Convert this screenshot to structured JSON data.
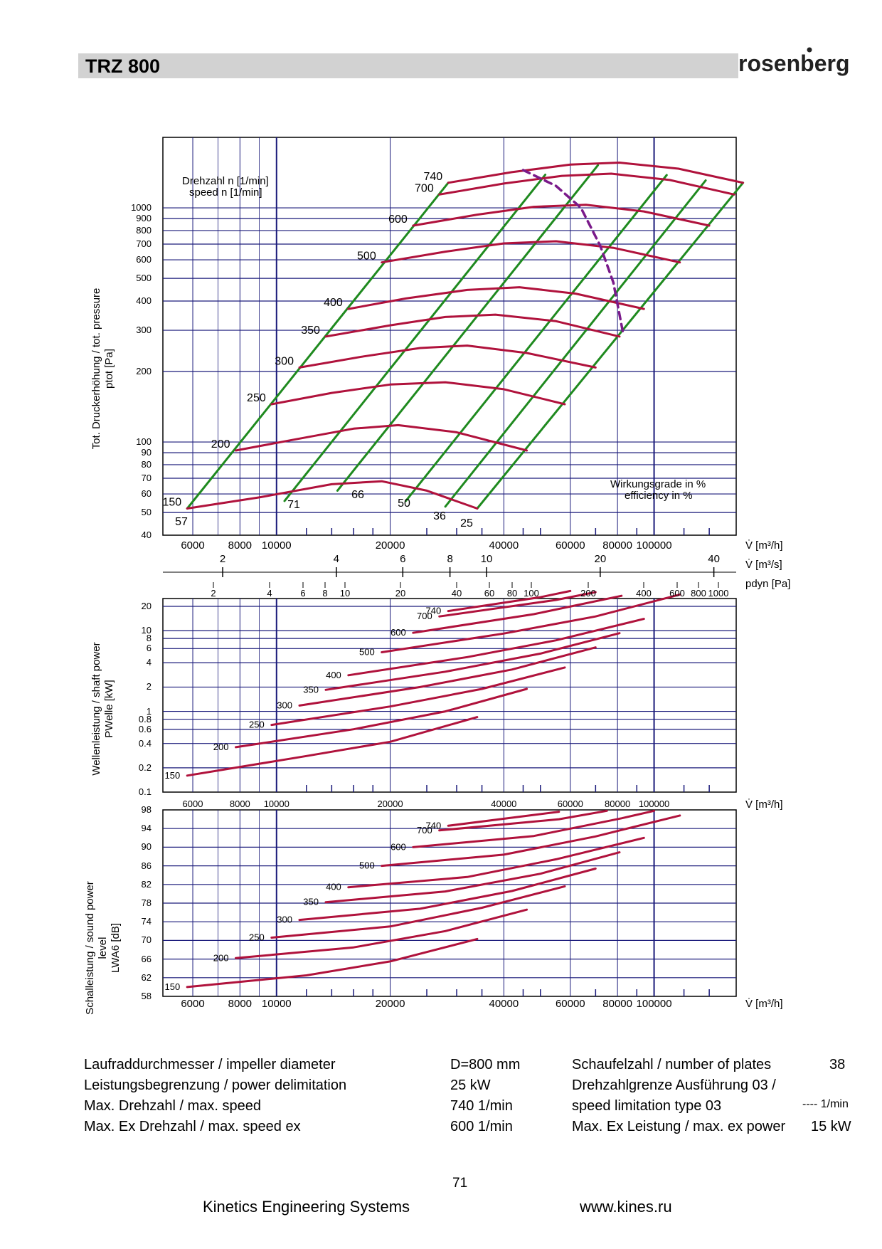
{
  "header": {
    "title": "TRZ 800",
    "logo_text": "rosenberg"
  },
  "pressure_chart": {
    "speed_label_de": "Drehzahl n [1/min]",
    "speed_label_en": "speed n [1/min]",
    "efficiency_label_de": "Wirkungsgrade in %",
    "efficiency_label_en": "efficiency in %",
    "y_title_1": "Tot. Druckerhöhung / tot. pressure",
    "y_title_2": "ptot [Pa]",
    "y_ticks": [
      "1000",
      "900",
      "800",
      "700",
      "600",
      "500",
      "400",
      "300",
      "200",
      "100",
      "90",
      "80",
      "70",
      "60",
      "50",
      "40"
    ],
    "x_ticks": [
      "6000",
      "8000",
      "10000",
      "20000",
      "40000",
      "60000",
      "80000",
      "100000"
    ],
    "x_unit": "V̇ [m³/h]",
    "x2_ticks": [
      "2",
      "4",
      "6",
      "8",
      "10",
      "20",
      "40"
    ],
    "x2_unit": "V̇ [m³/s]",
    "x3_ticks": [
      "2",
      "4",
      "6",
      "8",
      "10",
      "20",
      "40",
      "60",
      "80",
      "100",
      "200",
      "400",
      "600",
      "800",
      "1000"
    ],
    "x3_unit": "pdyn [Pa]"
  },
  "power_chart": {
    "y_title_1": "Wellenleistung / shaft power",
    "y_title_2": "PWelle [kW]",
    "y_ticks": [
      "20",
      "10",
      "8",
      "6",
      "4",
      "2",
      "1",
      "0.8",
      "0.6",
      "0.4",
      "0.2",
      "0.1"
    ],
    "x_ticks": [
      "6000",
      "8000",
      "10000",
      "20000",
      "40000",
      "60000",
      "80000",
      "100000"
    ],
    "x_unit": "V̇ [m³/h]"
  },
  "sound_chart": {
    "y_title_1": "Schalleistung / sound power",
    "y_title_1b": "level",
    "y_title_2": "LWA6 [dB]",
    "y_ticks": [
      "98",
      "94",
      "90",
      "86",
      "82",
      "78",
      "74",
      "70",
      "66",
      "62",
      "58"
    ],
    "x_ticks": [
      "6000",
      "8000",
      "10000",
      "20000",
      "40000",
      "60000",
      "80000",
      "100000"
    ],
    "x_unit": "V̇ [m³/h]"
  },
  "chart_data": [
    {
      "type": "line",
      "title": "",
      "xlabel": "V̇ [m³/h]",
      "ylabel": "Tot. Druckerhöhung / tot. pressure ptot [Pa]",
      "xscale": "log",
      "yscale": "log",
      "xlim": [
        5000,
        165000
      ],
      "ylim": [
        40,
        2000
      ],
      "series": [
        {
          "name": "150",
          "points": [
            [
              5800,
              52
            ],
            [
              9000,
              58
            ],
            [
              14000,
              66
            ],
            [
              19000,
              68
            ],
            [
              25000,
              62
            ],
            [
              34000,
              52
            ]
          ]
        },
        {
          "name": "200",
          "points": [
            [
              7800,
              92
            ],
            [
              11000,
              102
            ],
            [
              16000,
              114
            ],
            [
              21000,
              118
            ],
            [
              30000,
              110
            ],
            [
              46000,
              92
            ]
          ]
        },
        {
          "name": "250",
          "points": [
            [
              9700,
              145
            ],
            [
              14000,
              162
            ],
            [
              20000,
              176
            ],
            [
              28000,
              180
            ],
            [
              40000,
              168
            ],
            [
              58000,
              145
            ]
          ]
        },
        {
          "name": "300",
          "points": [
            [
              11500,
              208
            ],
            [
              17000,
              232
            ],
            [
              24000,
              252
            ],
            [
              32000,
              258
            ],
            [
              46000,
              240
            ],
            [
              70000,
              208
            ]
          ]
        },
        {
          "name": "350",
          "points": [
            [
              13500,
              282
            ],
            [
              20000,
              315
            ],
            [
              28000,
              342
            ],
            [
              38000,
              350
            ],
            [
              55000,
              328
            ],
            [
              81000,
              282
            ]
          ]
        },
        {
          "name": "400",
          "points": [
            [
              15500,
              370
            ],
            [
              22000,
              410
            ],
            [
              32000,
              446
            ],
            [
              44000,
              458
            ],
            [
              62000,
              430
            ],
            [
              94000,
              370
            ]
          ]
        },
        {
          "name": "500",
          "points": [
            [
              19000,
              585
            ],
            [
              28000,
              650
            ],
            [
              40000,
              705
            ],
            [
              55000,
              720
            ],
            [
              78000,
              675
            ],
            [
              117000,
              585
            ]
          ]
        },
        {
          "name": "600",
          "points": [
            [
              23000,
              840
            ],
            [
              34000,
              935
            ],
            [
              48000,
              1010
            ],
            [
              66000,
              1030
            ],
            [
              94000,
              965
            ],
            [
              140000,
              840
            ]
          ]
        },
        {
          "name": "700",
          "points": [
            [
              27000,
              1140
            ],
            [
              40000,
              1270
            ],
            [
              57000,
              1370
            ],
            [
              77000,
              1400
            ],
            [
              110000,
              1315
            ],
            [
              163000,
              1140
            ]
          ]
        },
        {
          "name": "740",
          "points": [
            [
              28500,
              1280
            ],
            [
              42000,
              1420
            ],
            [
              60000,
              1530
            ],
            [
              81000,
              1560
            ],
            [
              116000,
              1470
            ],
            [
              172000,
              1280
            ]
          ]
        }
      ],
      "efficiency_lines": [
        {
          "label": "57",
          "points": [
            [
              5800,
              52
            ],
            [
              28500,
              1280
            ]
          ]
        },
        {
          "label": "71",
          "points": [
            [
              10500,
              56
            ],
            [
              51500,
              1385
            ]
          ]
        },
        {
          "label": "66",
          "points": [
            [
              14500,
              62
            ],
            [
              71000,
              1520
            ]
          ]
        },
        {
          "label": "50",
          "points": [
            [
              22000,
              56
            ],
            [
              108000,
              1380
            ]
          ]
        },
        {
          "label": "36",
          "points": [
            [
              28000,
              53
            ],
            [
              137000,
              1310
            ]
          ]
        },
        {
          "label": "25",
          "points": [
            [
              34000,
              52
            ],
            [
              172000,
              1280
            ]
          ]
        }
      ],
      "speed_limit_curve": {
        "style": "dashed",
        "points": [
          [
            45000,
            1450
          ],
          [
            55000,
            1240
          ],
          [
            64000,
            1000
          ],
          [
            72000,
            690
          ],
          [
            78000,
            480
          ],
          [
            83000,
            285
          ]
        ]
      },
      "annotations": [
        "Drehzahl n [1/min]",
        "speed n [1/min]",
        "Wirkungsgrade in %",
        "efficiency in %"
      ]
    },
    {
      "type": "line",
      "title": "",
      "xlabel": "V̇ [m³/h]",
      "ylabel": "Wellenleistung / shaft power PWelle [kW]",
      "xscale": "log",
      "yscale": "log",
      "xlim": [
        5000,
        165000
      ],
      "ylim": [
        0.1,
        25
      ],
      "series": [
        {
          "name": "150",
          "points": [
            [
              5800,
              0.16
            ],
            [
              12000,
              0.28
            ],
            [
              20000,
              0.42
            ],
            [
              34000,
              0.85
            ]
          ]
        },
        {
          "name": "200",
          "points": [
            [
              7800,
              0.36
            ],
            [
              16000,
              0.6
            ],
            [
              28000,
              1.0
            ],
            [
              46000,
              1.9
            ]
          ]
        },
        {
          "name": "250",
          "points": [
            [
              9700,
              0.68
            ],
            [
              20000,
              1.15
            ],
            [
              35000,
              1.9
            ],
            [
              58000,
              3.5
            ]
          ]
        },
        {
          "name": "300",
          "points": [
            [
              11500,
              1.18
            ],
            [
              24000,
              2.0
            ],
            [
              42000,
              3.3
            ],
            [
              70000,
              6.2
            ]
          ]
        },
        {
          "name": "350",
          "points": [
            [
              13500,
              1.85
            ],
            [
              28000,
              3.1
            ],
            [
              50000,
              5.2
            ],
            [
              81000,
              9.3
            ]
          ]
        },
        {
          "name": "400",
          "points": [
            [
              15500,
              2.8
            ],
            [
              32000,
              4.7
            ],
            [
              55000,
              7.6
            ],
            [
              94000,
              14
            ]
          ]
        },
        {
          "name": "500",
          "points": [
            [
              19000,
              5.4
            ],
            [
              40000,
              9.2
            ],
            [
              70000,
              15
            ],
            [
              117000,
              28
            ]
          ]
        },
        {
          "name": "600",
          "points": [
            [
              23000,
              9.4
            ],
            [
              48000,
              16
            ],
            [
              82000,
              27
            ]
          ]
        },
        {
          "name": "700",
          "points": [
            [
              27000,
              15
            ],
            [
              55000,
              24
            ],
            [
              70000,
              30
            ]
          ]
        },
        {
          "name": "740",
          "points": [
            [
              28500,
              17.5
            ],
            [
              50000,
              26
            ],
            [
              60000,
              31
            ]
          ]
        }
      ]
    },
    {
      "type": "line",
      "title": "",
      "xlabel": "V̇ [m³/h]",
      "ylabel": "Schalleistung / sound power level LWA6 [dB]",
      "xscale": "log",
      "yscale": "linear",
      "xlim": [
        5000,
        165000
      ],
      "ylim": [
        58,
        98
      ],
      "series": [
        {
          "name": "150",
          "points": [
            [
              5800,
              60
            ],
            [
              12000,
              62.5
            ],
            [
              20000,
              65.5
            ],
            [
              34000,
              70.3
            ]
          ]
        },
        {
          "name": "200",
          "points": [
            [
              7800,
              66.2
            ],
            [
              16000,
              68.5
            ],
            [
              28000,
              72
            ],
            [
              46000,
              76.6
            ]
          ]
        },
        {
          "name": "250",
          "points": [
            [
              9700,
              70.6
            ],
            [
              20000,
              73
            ],
            [
              35000,
              77
            ],
            [
              58000,
              81.6
            ]
          ]
        },
        {
          "name": "300",
          "points": [
            [
              11500,
              74.4
            ],
            [
              24000,
              76.8
            ],
            [
              42000,
              80.6
            ],
            [
              70000,
              85.4
            ]
          ]
        },
        {
          "name": "350",
          "points": [
            [
              13500,
              78.2
            ],
            [
              28000,
              80.5
            ],
            [
              50000,
              84.3
            ],
            [
              81000,
              88.9
            ]
          ]
        },
        {
          "name": "400",
          "points": [
            [
              15500,
              81.4
            ],
            [
              32000,
              83.6
            ],
            [
              55000,
              87.4
            ],
            [
              94000,
              92
            ]
          ]
        },
        {
          "name": "500",
          "points": [
            [
              19000,
              86
            ],
            [
              40000,
              88.4
            ],
            [
              70000,
              92.3
            ],
            [
              117000,
              96.8
            ]
          ]
        },
        {
          "name": "600",
          "points": [
            [
              23000,
              90
            ],
            [
              48000,
              92.4
            ],
            [
              82000,
              96.2
            ],
            [
              100000,
              97.8
            ]
          ]
        },
        {
          "name": "700",
          "points": [
            [
              27000,
              93.6
            ],
            [
              56000,
              96
            ],
            [
              75000,
              97.8
            ]
          ]
        },
        {
          "name": "740",
          "points": [
            [
              28500,
              94.6
            ],
            [
              56000,
              97.6
            ]
          ]
        }
      ]
    }
  ],
  "specs": {
    "row1_label": "Laufraddurchmesser / impeller diameter",
    "row1_value": "D=800 mm",
    "row1_r_label": "Schaufelzahl / number of plates",
    "row1_r_value": "38",
    "row2_label": "Leistungsbegrenzung / power delimitation",
    "row2_value": "25 kW",
    "row2_r_label": "Drehzahlgrenze Ausführung 03 /",
    "row3_label": "Max. Drehzahl / max. speed",
    "row3_value": "740 1/min",
    "row3_r_label": "speed limitation type 03",
    "row3_r_value": "---- 1/min",
    "row4_label": "Max. Ex Drehzahl / max. speed ex",
    "row4_value": "600 1/min",
    "row4_r_label": "Max. Ex Leistung / max. ex power",
    "row4_r_value": "15 kW"
  },
  "footer": {
    "page": "71",
    "company": "Kinetics Engineering Systems",
    "url": "www.kines.ru"
  },
  "colors": {
    "curve": "#b0123c",
    "efficiency": "#1f8a1f",
    "grid": "#1a1a7a",
    "dashed": "#7a1a8a"
  }
}
